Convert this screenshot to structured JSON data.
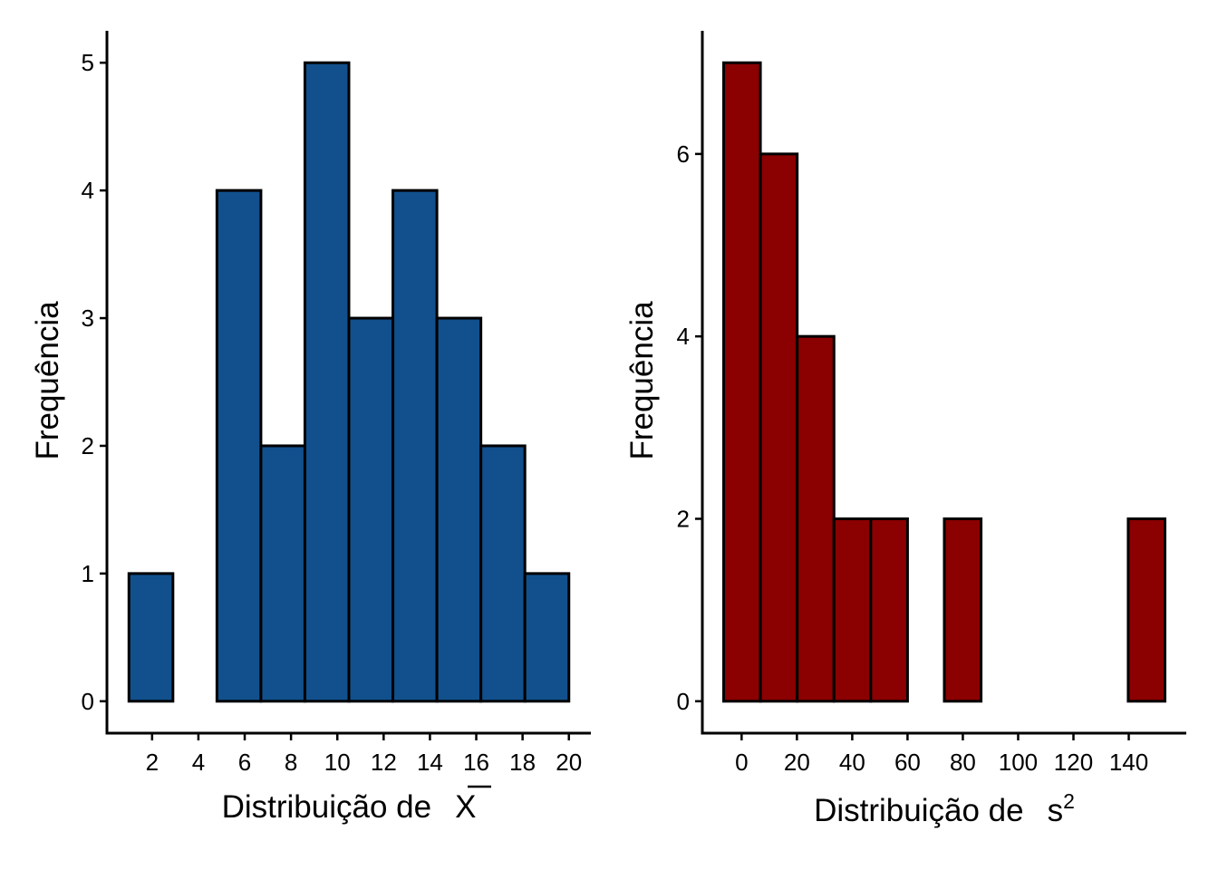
{
  "chart_data": [
    {
      "type": "histogram",
      "name": "mean",
      "xlabel": "Distribuição de",
      "xlabel_symbol": "X",
      "ylabel": "Frequência",
      "color": "#11508d",
      "edge_color": "#000000",
      "bins": [
        {
          "x0": 1.0,
          "x1": 2.9,
          "count": 1
        },
        {
          "x0": 2.9,
          "x1": 4.8,
          "count": 0
        },
        {
          "x0": 4.8,
          "x1": 6.7,
          "count": 4
        },
        {
          "x0": 6.7,
          "x1": 8.6,
          "count": 2
        },
        {
          "x0": 8.6,
          "x1": 10.5,
          "count": 5
        },
        {
          "x0": 10.5,
          "x1": 12.4,
          "count": 3
        },
        {
          "x0": 12.4,
          "x1": 14.3,
          "count": 4
        },
        {
          "x0": 14.3,
          "x1": 16.2,
          "count": 3
        },
        {
          "x0": 16.2,
          "x1": 18.1,
          "count": 2
        },
        {
          "x0": 18.1,
          "x1": 20.0,
          "count": 1
        }
      ],
      "xlim": [
        0.05,
        20.95
      ],
      "ylim": [
        -0.25,
        5.25
      ],
      "xticks": [
        2,
        4,
        6,
        8,
        10,
        12,
        14,
        16,
        18,
        20
      ],
      "yticks": [
        0,
        1,
        2,
        3,
        4,
        5
      ]
    },
    {
      "type": "histogram",
      "name": "variance",
      "xlabel": "Distribuição de",
      "xlabel_symbol": "s",
      "xlabel_superscript": "2",
      "ylabel": "Frequência",
      "color": "#8b0000",
      "edge_color": "#000000",
      "bins": [
        {
          "x0": -6.5,
          "x1": 6.8,
          "count": 7
        },
        {
          "x0": 6.8,
          "x1": 20.1,
          "count": 6
        },
        {
          "x0": 20.1,
          "x1": 33.4,
          "count": 4
        },
        {
          "x0": 33.4,
          "x1": 46.7,
          "count": 2
        },
        {
          "x0": 46.7,
          "x1": 60.0,
          "count": 2
        },
        {
          "x0": 60.0,
          "x1": 73.3,
          "count": 0
        },
        {
          "x0": 73.3,
          "x1": 86.6,
          "count": 2
        },
        {
          "x0": 86.6,
          "x1": 99.9,
          "count": 0
        },
        {
          "x0": 99.9,
          "x1": 113.2,
          "count": 0
        },
        {
          "x0": 113.2,
          "x1": 126.5,
          "count": 0
        },
        {
          "x0": 126.5,
          "x1": 139.8,
          "count": 0
        },
        {
          "x0": 139.8,
          "x1": 153.1,
          "count": 2
        }
      ],
      "xlim": [
        -14.2,
        160.8
      ],
      "ylim": [
        -0.35,
        7.35
      ],
      "xticks": [
        0,
        20,
        40,
        60,
        80,
        100,
        120,
        140
      ],
      "yticks": [
        0,
        2,
        4,
        6
      ]
    }
  ]
}
